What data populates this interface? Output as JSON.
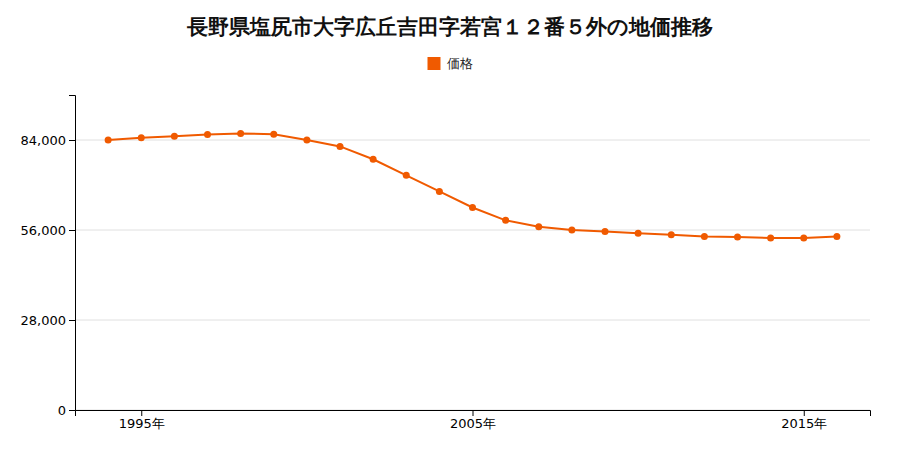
{
  "chart_data": {
    "type": "line",
    "title": "長野県塩尻市大字広丘吉田字若宮１２番５外の地価推移",
    "x": [
      1994,
      1995,
      1996,
      1997,
      1998,
      1999,
      2000,
      2001,
      2002,
      2003,
      2004,
      2005,
      2006,
      2007,
      2008,
      2009,
      2010,
      2011,
      2012,
      2013,
      2014,
      2015,
      2016
    ],
    "series": [
      {
        "name": "価格",
        "color": "#f05a00",
        "marker": "circle",
        "values": [
          84000,
          84700,
          85200,
          85700,
          86000,
          85800,
          84000,
          82000,
          78000,
          73000,
          68000,
          63000,
          59000,
          57000,
          56000,
          55500,
          55000,
          54500,
          54000,
          53800,
          53500,
          53500,
          54000
        ]
      }
    ],
    "xlim": [
      1993,
      2017
    ],
    "xticks": [
      {
        "value": 1995,
        "label": "1995年"
      },
      {
        "value": 2005,
        "label": "2005年"
      },
      {
        "value": 2015,
        "label": "2015年"
      }
    ],
    "ylim": [
      0,
      98000
    ],
    "yticks": [
      0,
      {
        "value": 28000,
        "label": "28,000"
      },
      {
        "value": 56000,
        "label": "56,000"
      },
      {
        "value": 84000,
        "label": "84,000"
      }
    ],
    "grid": "y",
    "legend": "top"
  }
}
